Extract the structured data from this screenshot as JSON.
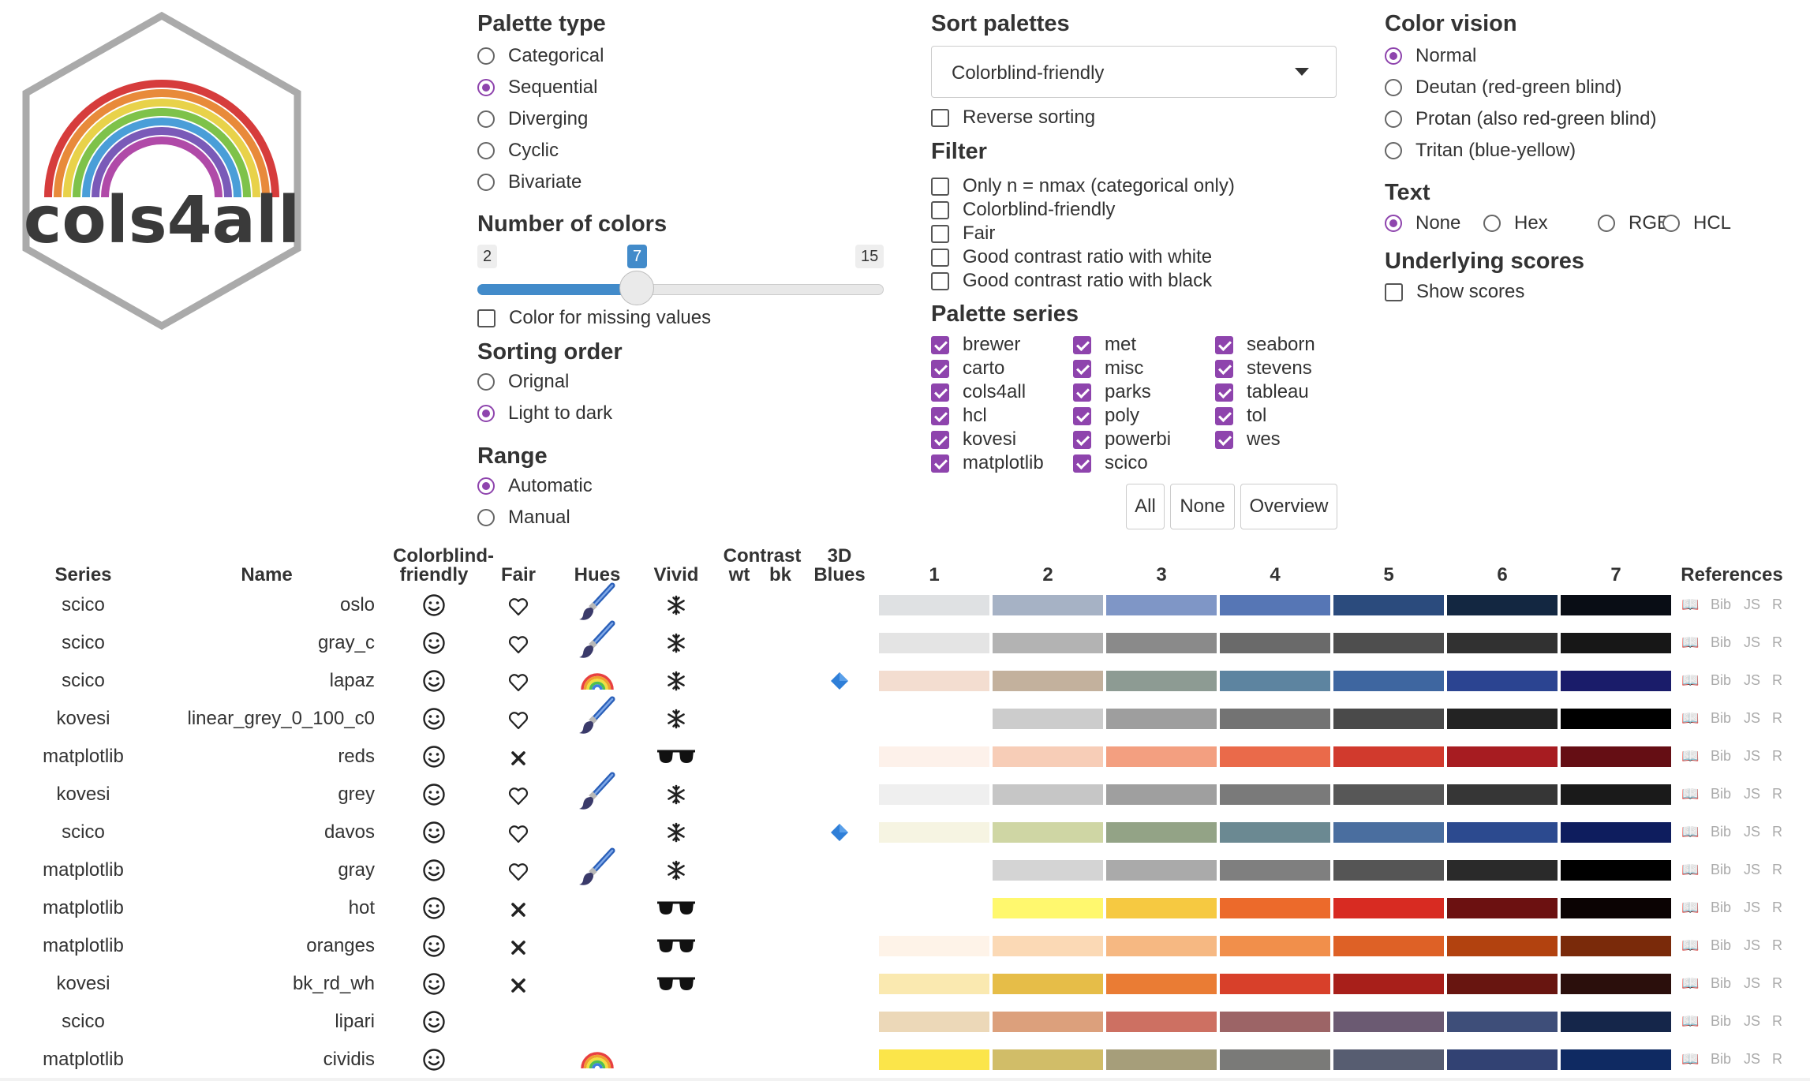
{
  "logo": {
    "text": "cols4all"
  },
  "palette_type": {
    "title": "Palette type",
    "options": [
      {
        "label": "Categorical",
        "selected": false
      },
      {
        "label": "Sequential",
        "selected": true
      },
      {
        "label": "Diverging",
        "selected": false
      },
      {
        "label": "Cyclic",
        "selected": false
      },
      {
        "label": "Bivariate",
        "selected": false
      }
    ]
  },
  "number_of_colors": {
    "title": "Number of colors",
    "min": "2",
    "value": "7",
    "max": "15"
  },
  "missing": {
    "label": "Color for missing values",
    "checked": false
  },
  "sorting_order": {
    "title": "Sorting order",
    "options": [
      {
        "label": "Orignal",
        "selected": false
      },
      {
        "label": "Light to dark",
        "selected": true
      }
    ]
  },
  "range": {
    "title": "Range",
    "options": [
      {
        "label": "Automatic",
        "selected": true
      },
      {
        "label": "Manual",
        "selected": false
      }
    ]
  },
  "sort_palettes": {
    "title": "Sort palettes",
    "selected": "Colorblind-friendly",
    "reverse_label": "Reverse sorting"
  },
  "filter": {
    "title": "Filter",
    "options": [
      "Only n = nmax (categorical only)",
      "Colorblind-friendly",
      "Fair",
      "Good contrast ratio with white",
      "Good contrast ratio with black"
    ]
  },
  "palette_series": {
    "title": "Palette series",
    "col1": [
      "brewer",
      "carto",
      "cols4all",
      "hcl",
      "kovesi",
      "matplotlib"
    ],
    "col2": [
      "met",
      "misc",
      "parks",
      "poly",
      "powerbi",
      "scico"
    ],
    "col3": [
      "seaborn",
      "stevens",
      "tableau",
      "tol",
      "wes"
    ],
    "buttons": [
      "All",
      "None",
      "Overview"
    ]
  },
  "color_vision": {
    "title": "Color vision",
    "options": [
      {
        "label": "Normal",
        "selected": true
      },
      {
        "label": "Deutan (red-green blind)",
        "selected": false
      },
      {
        "label": "Protan (also red-green blind)",
        "selected": false
      },
      {
        "label": "Tritan (blue-yellow)",
        "selected": false
      }
    ]
  },
  "text_opts": {
    "title": "Text",
    "options": [
      {
        "label": "None",
        "selected": true
      },
      {
        "label": "Hex",
        "selected": false
      },
      {
        "label": "RGB",
        "selected": false
      },
      {
        "label": "HCL",
        "selected": false
      }
    ]
  },
  "underlying": {
    "title": "Underlying scores",
    "label": "Show scores"
  },
  "table": {
    "headers": {
      "series": "Series",
      "name": "Name",
      "cbf1": "Colorblind-",
      "cbf2": "friendly",
      "fair": "Fair",
      "hues": "Hues",
      "vivid": "Vivid",
      "contrast": "Contrast",
      "wt": "wt",
      "bk": "bk",
      "three_d": "3D",
      "blues": "Blues",
      "cols": [
        "1",
        "2",
        "3",
        "4",
        "5",
        "6",
        "7"
      ],
      "references": "References"
    },
    "ref_links": [
      "📖",
      "Bib",
      "JS",
      "R"
    ],
    "rows": [
      {
        "series": "scico",
        "name": "oslo",
        "fair": "heart",
        "hues": "brush",
        "vivid": "snow",
        "blues": "",
        "colors": [
          "#dfe1e3",
          "#a6b2c5",
          "#7f96c6",
          "#5676b5",
          "#2b4b7d",
          "#132741",
          "#090d15"
        ]
      },
      {
        "series": "scico",
        "name": "gray_c",
        "fair": "heart",
        "hues": "brush",
        "vivid": "snow",
        "blues": "",
        "colors": [
          "#e4e4e4",
          "#b3b3b3",
          "#8a8a8a",
          "#6a6a6a",
          "#4e4e4e",
          "#313131",
          "#171717"
        ]
      },
      {
        "series": "scico",
        "name": "lapaz",
        "fair": "heart",
        "hues": "rainbow",
        "vivid": "snow",
        "blues": "diamond",
        "colors": [
          "#f3ddd0",
          "#c3b19d",
          "#8d9b93",
          "#5d84a0",
          "#3e66a0",
          "#2b4491",
          "#1a1c6a"
        ]
      },
      {
        "series": "kovesi",
        "name": "linear_grey_0_100_c0",
        "fair": "heart",
        "hues": "brush",
        "vivid": "snow",
        "blues": "",
        "colors": [
          "#ffffff",
          "#cccccc",
          "#9e9e9e",
          "#737373",
          "#4a4a4a",
          "#232323",
          "#000000"
        ]
      },
      {
        "series": "matplotlib",
        "name": "reds",
        "fair": "x",
        "hues": "",
        "vivid": "glasses",
        "blues": "",
        "colors": [
          "#fdf1ea",
          "#f7cdb7",
          "#f39f80",
          "#ea6a4a",
          "#d13a2d",
          "#a71c21",
          "#650e14"
        ]
      },
      {
        "series": "kovesi",
        "name": "grey",
        "fair": "heart",
        "hues": "brush",
        "vivid": "snow",
        "blues": "",
        "colors": [
          "#efefef",
          "#c6c6c6",
          "#9f9f9f",
          "#7a7a7a",
          "#575757",
          "#363636",
          "#1a1a1a"
        ]
      },
      {
        "series": "scico",
        "name": "davos",
        "fair": "heart",
        "hues": "",
        "vivid": "snow",
        "blues": "diamond",
        "colors": [
          "#f6f4e2",
          "#cfd6a4",
          "#93a386",
          "#6b8992",
          "#4a6e9f",
          "#2c4a8f",
          "#0e1d5e"
        ]
      },
      {
        "series": "matplotlib",
        "name": "gray",
        "fair": "heart",
        "hues": "brush",
        "vivid": "snow",
        "blues": "",
        "colors": [
          "#ffffff",
          "#d4d4d4",
          "#aaaaaa",
          "#7f7f7f",
          "#555555",
          "#2a2a2a",
          "#000000"
        ]
      },
      {
        "series": "matplotlib",
        "name": "hot",
        "fair": "x",
        "hues": "",
        "vivid": "glasses",
        "blues": "",
        "colors": [
          "#ffffff",
          "#fff86e",
          "#f6c941",
          "#ec6a2b",
          "#d82b22",
          "#6c1111",
          "#0b0303"
        ]
      },
      {
        "series": "matplotlib",
        "name": "oranges",
        "fair": "x",
        "hues": "",
        "vivid": "glasses",
        "blues": "",
        "colors": [
          "#fef3e8",
          "#fbd9b5",
          "#f6b882",
          "#f18f4b",
          "#de6126",
          "#b2420f",
          "#7a2a0a"
        ]
      },
      {
        "series": "kovesi",
        "name": "bk_rd_wh",
        "fair": "x",
        "hues": "",
        "vivid": "glasses",
        "blues": "",
        "colors": [
          "#fae9b0",
          "#e6bd48",
          "#ea7c34",
          "#d8402a",
          "#a81f1a",
          "#681510",
          "#2b0f0c"
        ]
      },
      {
        "series": "scico",
        "name": "lipari",
        "fair": "",
        "hues": "",
        "vivid": "",
        "blues": "",
        "colors": [
          "#ecd8b8",
          "#dca07c",
          "#cd7062",
          "#9c6466",
          "#6b5a72",
          "#3e4e79",
          "#15264a"
        ]
      },
      {
        "series": "matplotlib",
        "name": "cividis",
        "fair": "",
        "hues": "rainbow",
        "vivid": "",
        "blues": "",
        "colors": [
          "#fbe54a",
          "#d1bd68",
          "#a69e7a",
          "#7a7a78",
          "#575d71",
          "#324273",
          "#0f2a62"
        ]
      }
    ]
  }
}
